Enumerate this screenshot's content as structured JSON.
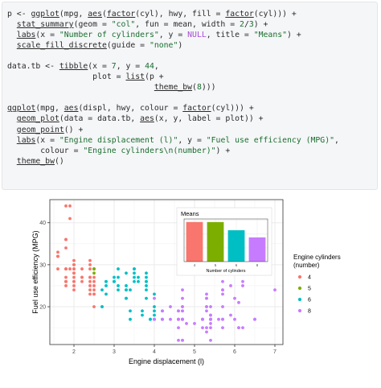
{
  "code": {
    "lines": [
      [
        {
          "t": "p <- "
        },
        {
          "t": "ggplot",
          "c": "fn"
        },
        {
          "t": "(mpg, "
        },
        {
          "t": "aes",
          "c": "fn"
        },
        {
          "t": "("
        },
        {
          "t": "factor",
          "c": "fn"
        },
        {
          "t": "(cyl), hwy, fill = "
        },
        {
          "t": "factor",
          "c": "fn"
        },
        {
          "t": "(cyl))) +"
        }
      ],
      [
        {
          "t": "  "
        },
        {
          "t": "stat_summary",
          "c": "fn"
        },
        {
          "t": "(geom = "
        },
        {
          "t": "\"col\"",
          "c": "str"
        },
        {
          "t": ", fun = mean, width = "
        },
        {
          "t": "2",
          "c": "num"
        },
        {
          "t": "/"
        },
        {
          "t": "3",
          "c": "num"
        },
        {
          "t": ") +"
        }
      ],
      [
        {
          "t": "  "
        },
        {
          "t": "labs",
          "c": "fn"
        },
        {
          "t": "(x = "
        },
        {
          "t": "\"Number of cylinders\"",
          "c": "str"
        },
        {
          "t": ", y = "
        },
        {
          "t": "NULL",
          "c": "kw"
        },
        {
          "t": ", title = "
        },
        {
          "t": "\"Means\"",
          "c": "str"
        },
        {
          "t": ") +"
        }
      ],
      [
        {
          "t": "  "
        },
        {
          "t": "scale_fill_discrete",
          "c": "fn"
        },
        {
          "t": "(guide = "
        },
        {
          "t": "\"none\"",
          "c": "str"
        },
        {
          "t": ")"
        }
      ],
      [
        {
          "t": ""
        }
      ],
      [
        {
          "t": "data.tb <- "
        },
        {
          "t": "tibble",
          "c": "fn"
        },
        {
          "t": "(x = "
        },
        {
          "t": "7",
          "c": "num"
        },
        {
          "t": ", y = "
        },
        {
          "t": "44",
          "c": "num"
        },
        {
          "t": ","
        }
      ],
      [
        {
          "t": "                  plot = "
        },
        {
          "t": "list",
          "c": "fn"
        },
        {
          "t": "(p +"
        }
      ],
      [
        {
          "t": "                               "
        },
        {
          "t": "theme_bw",
          "c": "fn"
        },
        {
          "t": "("
        },
        {
          "t": "8",
          "c": "num"
        },
        {
          "t": ")))"
        }
      ],
      [
        {
          "t": ""
        }
      ],
      [
        {
          "t": "ggplot",
          "c": "fn"
        },
        {
          "t": "(mpg, "
        },
        {
          "t": "aes",
          "c": "fn"
        },
        {
          "t": "(displ, hwy, colour = "
        },
        {
          "t": "factor",
          "c": "fn"
        },
        {
          "t": "(cyl))) +"
        }
      ],
      [
        {
          "t": "  "
        },
        {
          "t": "geom_plot",
          "c": "fn"
        },
        {
          "t": "(data = data.tb, "
        },
        {
          "t": "aes",
          "c": "fn"
        },
        {
          "t": "(x, y, label = plot)) +"
        }
      ],
      [
        {
          "t": "  "
        },
        {
          "t": "geom_point",
          "c": "fn"
        },
        {
          "t": "() +"
        }
      ],
      [
        {
          "t": "  "
        },
        {
          "t": "labs",
          "c": "fn"
        },
        {
          "t": "(x = "
        },
        {
          "t": "\"Engine displacement (l)\"",
          "c": "str"
        },
        {
          "t": ", y = "
        },
        {
          "t": "\"Fuel use efficiency (MPG)\"",
          "c": "str"
        },
        {
          "t": ","
        }
      ],
      [
        {
          "t": "       colour = "
        },
        {
          "t": "\"Engine cylinders\\n(number)\"",
          "c": "str"
        },
        {
          "t": ") +"
        }
      ],
      [
        {
          "t": "  "
        },
        {
          "t": "theme_bw",
          "c": "fn"
        },
        {
          "t": "()"
        }
      ]
    ]
  },
  "chart_data": [
    {
      "type": "scatter",
      "xlabel": "Engine displacement (l)",
      "ylabel": "Fuel use efficiency (MPG)",
      "xlim": [
        1.4,
        7.2
      ],
      "ylim": [
        11,
        45.5
      ],
      "x_ticks": [
        2,
        3,
        4,
        5,
        6,
        7
      ],
      "y_ticks": [
        20,
        30,
        40
      ],
      "legend": {
        "title_lines": [
          "Engine cylinders",
          "(number)"
        ],
        "placement": "right",
        "entries": [
          {
            "label": "4",
            "color": "#F8766D"
          },
          {
            "label": "5",
            "color": "#7CAE00"
          },
          {
            "label": "6",
            "color": "#00BFC4"
          },
          {
            "label": "8",
            "color": "#C77CFF"
          }
        ]
      },
      "series": [
        {
          "name": "4",
          "color": "#F8766D",
          "points": [
            [
              1.8,
              29
            ],
            [
              1.8,
              29
            ],
            [
              2.0,
              31
            ],
            [
              2.0,
              30
            ],
            [
              1.8,
              26
            ],
            [
              1.8,
              25
            ],
            [
              2.0,
              28
            ],
            [
              2.0,
              27
            ],
            [
              1.8,
              26
            ],
            [
              2.0,
              25
            ],
            [
              2.0,
              26
            ],
            [
              2.2,
              27
            ],
            [
              2.4,
              30
            ],
            [
              2.4,
              31
            ],
            [
              2.4,
              27
            ],
            [
              1.8,
              29
            ],
            [
              2.4,
              25
            ],
            [
              2.5,
              25
            ],
            [
              2.2,
              29
            ],
            [
              2.2,
              26
            ],
            [
              2.4,
              26
            ],
            [
              2.4,
              24
            ],
            [
              2.4,
              29
            ],
            [
              2.4,
              27
            ],
            [
              2.5,
              27
            ],
            [
              2.5,
              23
            ],
            [
              2.5,
              20
            ],
            [
              1.6,
              33
            ],
            [
              1.6,
              32
            ],
            [
              1.6,
              32
            ],
            [
              1.6,
              29
            ],
            [
              1.6,
              32
            ],
            [
              1.8,
              34
            ],
            [
              1.8,
              36
            ],
            [
              1.8,
              36
            ],
            [
              2.0,
              29
            ],
            [
              2.0,
              26
            ],
            [
              1.8,
              27
            ],
            [
              1.8,
              26
            ],
            [
              2.0,
              30
            ],
            [
              1.9,
              44
            ],
            [
              1.9,
              41
            ],
            [
              1.9,
              29
            ],
            [
              2.5,
              26
            ],
            [
              2.5,
              29
            ],
            [
              2.0,
              28
            ],
            [
              2.0,
              29
            ],
            [
              2.0,
              24
            ],
            [
              2.5,
              23
            ],
            [
              2.5,
              24
            ],
            [
              1.8,
              44
            ],
            [
              2.2,
              27
            ],
            [
              2.4,
              23
            ]
          ]
        },
        {
          "name": "5",
          "color": "#7CAE00",
          "points": [
            [
              2.5,
              29
            ],
            [
              2.5,
              28
            ],
            [
              2.5,
              29
            ]
          ]
        },
        {
          "name": "6",
          "color": "#00BFC4",
          "points": [
            [
              2.8,
              26
            ],
            [
              2.8,
              26
            ],
            [
              3.1,
              27
            ],
            [
              2.8,
              25
            ],
            [
              2.8,
              23
            ],
            [
              3.1,
              25
            ],
            [
              3.1,
              24
            ],
            [
              3.3,
              22
            ],
            [
              3.3,
              22
            ],
            [
              3.3,
              24
            ],
            [
              3.3,
              24
            ],
            [
              3.8,
              24
            ],
            [
              3.8,
              22
            ],
            [
              3.8,
              25
            ],
            [
              4.0,
              23
            ],
            [
              3.7,
              19
            ],
            [
              3.7,
              18
            ],
            [
              3.9,
              17
            ],
            [
              3.9,
              17
            ],
            [
              4.0,
              20
            ],
            [
              4.0,
              17
            ],
            [
              4.0,
              19
            ],
            [
              4.2,
              19
            ],
            [
              4.2,
              17
            ],
            [
              3.0,
              26
            ],
            [
              3.5,
              26
            ],
            [
              3.3,
              28
            ],
            [
              3.5,
              29
            ],
            [
              3.4,
              24
            ],
            [
              3.0,
              26
            ],
            [
              3.0,
              27
            ],
            [
              3.5,
              27
            ],
            [
              3.8,
              26
            ],
            [
              3.8,
              27
            ],
            [
              3.8,
              28
            ],
            [
              3.3,
              25
            ],
            [
              3.8,
              26
            ],
            [
              3.1,
              29
            ],
            [
              3.5,
              29
            ],
            [
              3.5,
              28
            ],
            [
              3.6,
              26
            ],
            [
              2.7,
              24
            ],
            [
              2.7,
              20
            ],
            [
              2.7,
              20
            ],
            [
              3.4,
              17
            ],
            [
              3.4,
              19
            ],
            [
              4.0,
              18
            ],
            [
              3.0,
              26
            ],
            [
              3.6,
              27
            ]
          ]
        },
        {
          "name": "8",
          "color": "#C77CFF",
          "points": [
            [
              5.3,
              20
            ],
            [
              5.3,
              15
            ],
            [
              5.3,
              20
            ],
            [
              5.7,
              17
            ],
            [
              6.0,
              17
            ],
            [
              5.7,
              26
            ],
            [
              5.7,
              23
            ],
            [
              6.2,
              26
            ],
            [
              6.2,
              25
            ],
            [
              7.0,
              24
            ],
            [
              5.3,
              19
            ],
            [
              5.3,
              14
            ],
            [
              5.7,
              15
            ],
            [
              6.5,
              17
            ],
            [
              5.2,
              17
            ],
            [
              5.2,
              15
            ],
            [
              5.7,
              17
            ],
            [
              5.9,
              18
            ],
            [
              4.7,
              17
            ],
            [
              4.7,
              19
            ],
            [
              4.7,
              19
            ],
            [
              5.2,
              17
            ],
            [
              5.2,
              17
            ],
            [
              4.7,
              12
            ],
            [
              4.7,
              17
            ],
            [
              4.7,
              17
            ],
            [
              4.7,
              17
            ],
            [
              4.6,
              17
            ],
            [
              5.4,
              16
            ],
            [
              5.4,
              17
            ],
            [
              5.4,
              17
            ],
            [
              4.0,
              17
            ],
            [
              4.6,
              17
            ],
            [
              5.0,
              16
            ],
            [
              4.6,
              19
            ],
            [
              4.6,
              17
            ],
            [
              5.4,
              17
            ],
            [
              4.2,
              17
            ],
            [
              4.4,
              17
            ],
            [
              4.6,
              12
            ],
            [
              4.6,
              15
            ],
            [
              5.4,
              15
            ],
            [
              5.4,
              18
            ],
            [
              6.1,
              15
            ],
            [
              6.1,
              15
            ],
            [
              6.5,
              17
            ],
            [
              5.4,
              17
            ],
            [
              5.4,
              17
            ],
            [
              5.4,
              12
            ],
            [
              4.7,
              22
            ],
            [
              4.7,
              20
            ],
            [
              5.7,
              24
            ],
            [
              5.9,
              25
            ],
            [
              5.7,
              24
            ],
            [
              5.3,
              22
            ],
            [
              6.1,
              21
            ],
            [
              5.4,
              20
            ],
            [
              4.6,
              19
            ],
            [
              5.3,
              23
            ],
            [
              5.3,
              22
            ],
            [
              4.7,
              12
            ],
            [
              4.7,
              20
            ],
            [
              4.7,
              24
            ],
            [
              4.0,
              22
            ],
            [
              4.2,
              19
            ],
            [
              4.4,
              20
            ],
            [
              6.0,
              22
            ],
            [
              5.7,
              20
            ],
            [
              5.4,
              18
            ],
            [
              5.6,
              17
            ],
            [
              6.2,
              15
            ],
            [
              4.8,
              16
            ]
          ]
        }
      ]
    },
    {
      "type": "bar",
      "title": "Means",
      "xlabel": "Number of cylinders",
      "ylabel": "",
      "categories": [
        "4",
        "5",
        "6",
        "8"
      ],
      "values": [
        28.8,
        28.75,
        22.8,
        17.6
      ],
      "colors": [
        "#F8766D",
        "#7CAE00",
        "#00BFC4",
        "#C77CFF"
      ],
      "ylim": [
        0,
        31
      ],
      "y_ticks": [
        0,
        10,
        20,
        30
      ]
    }
  ]
}
